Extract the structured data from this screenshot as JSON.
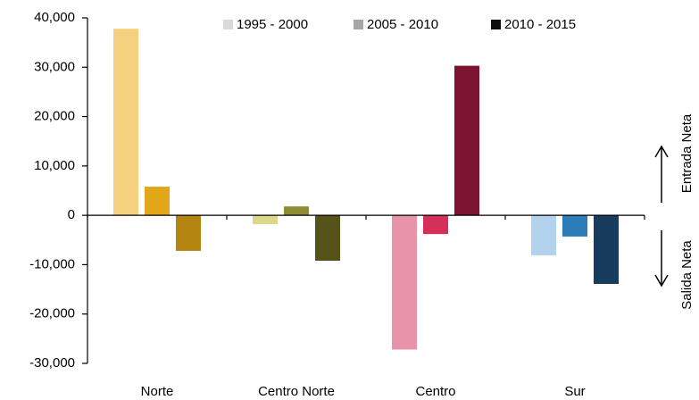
{
  "chart_data": {
    "type": "bar",
    "categories": [
      "Norte",
      "Centro Norte",
      "Centro",
      "Sur"
    ],
    "series": [
      {
        "name": "1995 - 2000",
        "color": "#d9d9d9",
        "values": [
          37800,
          -1800,
          -27200,
          -8100
        ],
        "bar_colors": [
          "#f5d07e",
          "#dcd889",
          "#e893aa",
          "#b3d2ee"
        ]
      },
      {
        "name": "2005 - 2010",
        "color": "#a6a6a6",
        "values": [
          5800,
          1800,
          -3800,
          -4300
        ],
        "bar_colors": [
          "#e2a718",
          "#8f8c35",
          "#d5305a",
          "#2c7cb8"
        ]
      },
      {
        "name": "2010 - 2015",
        "color": "#0d0d0d",
        "values": [
          -7200,
          -9200,
          30300,
          -13900
        ],
        "bar_colors": [
          "#b48410",
          "#56531a",
          "#7d1532",
          "#183c5e"
        ]
      }
    ],
    "ylim": [
      -30000,
      40000
    ],
    "yticks": [
      {
        "value": -30000,
        "label": "-30,000"
      },
      {
        "value": -20000,
        "label": "-20,000"
      },
      {
        "value": -10000,
        "label": "-10,000"
      },
      0,
      {
        "value": 10000,
        "label": "10,000"
      },
      {
        "value": 20000,
        "label": "20,000"
      },
      {
        "value": 30000,
        "label": "30,000"
      },
      {
        "value": 40000,
        "label": "40,000"
      }
    ],
    "annotations": [
      "Entrada Neta",
      "Salida Neta"
    ]
  }
}
